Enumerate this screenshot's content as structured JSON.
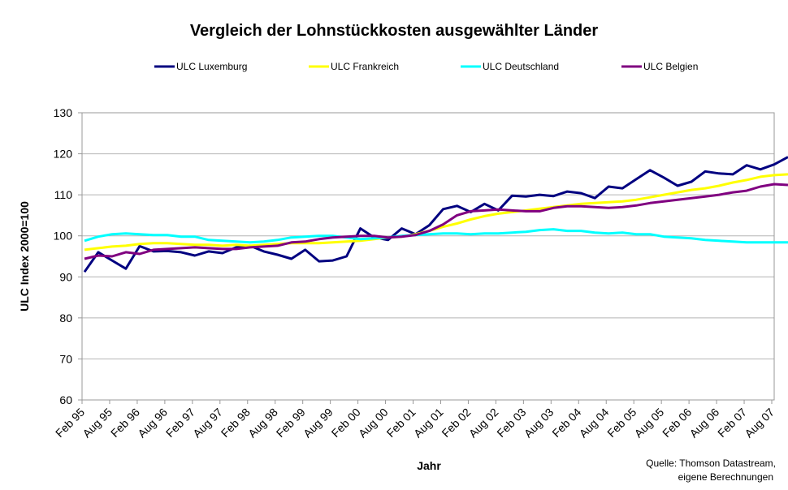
{
  "chart_data": {
    "type": "line",
    "title": "Vergleich der Lohnstückkosten ausgewählter Länder",
    "xlabel": "Jahr",
    "ylabel": "ULC Index 2000=100",
    "ylim": [
      60,
      130
    ],
    "yticks": [
      60,
      70,
      80,
      90,
      100,
      110,
      120,
      130
    ],
    "grid": true,
    "legend": "top",
    "x_tick_labels": [
      "Feb 95",
      "Aug 95",
      "Feb 96",
      "Aug 96",
      "Feb 97",
      "Aug 97",
      "Feb 98",
      "Aug 98",
      "Feb 99",
      "Aug 99",
      "Feb 00",
      "Aug 00",
      "Feb 01",
      "Aug 01",
      "Feb 02",
      "Aug 02",
      "Feb 03",
      "Aug 03",
      "Feb 04",
      "Aug 04",
      "Feb 05",
      "Aug 05",
      "Feb 06",
      "Aug 06",
      "Feb 07",
      "Aug 07"
    ],
    "points_per_tick": 2,
    "series": [
      {
        "name": "ULC Luxemburg",
        "color": "#000080",
        "values": [
          91.2,
          96.0,
          94.0,
          92.0,
          97.5,
          96.2,
          96.3,
          96.0,
          95.2,
          96.2,
          95.8,
          97.2,
          97.6,
          96.2,
          95.4,
          94.4,
          96.6,
          93.8,
          94.0,
          95.0,
          101.8,
          99.6,
          99.0,
          101.8,
          100.4,
          102.6,
          106.5,
          107.3,
          105.8,
          107.8,
          106.2,
          109.8,
          109.6,
          110.0,
          109.7,
          110.8,
          110.4,
          109.2,
          112.0,
          111.6,
          113.8,
          116.0,
          114.2,
          112.2,
          113.2,
          115.7,
          115.2,
          115.0,
          117.2,
          116.2,
          117.4,
          119.2
        ]
      },
      {
        "name": "ULC Frankreich",
        "color": "#FFFF00",
        "values": [
          96.6,
          97.0,
          97.4,
          97.6,
          98.0,
          98.2,
          98.2,
          98.0,
          97.8,
          97.8,
          97.6,
          97.8,
          97.6,
          97.8,
          98.0,
          98.2,
          98.2,
          98.2,
          98.4,
          98.6,
          98.8,
          99.2,
          99.6,
          99.8,
          100.4,
          101.2,
          102.2,
          103.0,
          104.0,
          104.8,
          105.4,
          105.8,
          106.2,
          106.6,
          107.0,
          107.4,
          107.8,
          108.0,
          108.2,
          108.4,
          108.8,
          109.4,
          110.0,
          110.6,
          111.2,
          111.6,
          112.2,
          113.0,
          113.6,
          114.4,
          114.8,
          115.0
        ]
      },
      {
        "name": "ULC Deutschland",
        "color": "#00FFFF",
        "values": [
          98.8,
          99.8,
          100.4,
          100.6,
          100.4,
          100.2,
          100.2,
          99.8,
          99.8,
          99.0,
          98.8,
          98.6,
          98.4,
          98.6,
          99.0,
          99.6,
          99.8,
          100.0,
          100.0,
          99.6,
          99.2,
          99.4,
          99.6,
          100.0,
          100.2,
          100.4,
          100.6,
          100.6,
          100.4,
          100.6,
          100.6,
          100.8,
          101.0,
          101.4,
          101.6,
          101.2,
          101.2,
          100.8,
          100.6,
          100.8,
          100.4,
          100.4,
          99.8,
          99.6,
          99.4,
          99.0,
          98.8,
          98.6,
          98.4,
          98.4,
          98.4,
          98.4
        ]
      },
      {
        "name": "ULC Belgien",
        "color": "#800080",
        "values": [
          94.4,
          95.2,
          95.0,
          96.0,
          95.6,
          96.6,
          96.8,
          97.0,
          97.2,
          97.0,
          96.8,
          96.8,
          97.2,
          97.4,
          97.6,
          98.4,
          98.6,
          99.2,
          99.6,
          99.8,
          100.0,
          100.0,
          99.6,
          99.8,
          100.2,
          101.2,
          102.8,
          105.0,
          106.0,
          106.2,
          106.4,
          106.2,
          106.0,
          106.0,
          106.8,
          107.2,
          107.2,
          107.0,
          106.8,
          107.0,
          107.4,
          108.0,
          108.4,
          108.8,
          109.2,
          109.6,
          110.0,
          110.6,
          111.0,
          112.0,
          112.6,
          112.4
        ]
      }
    ]
  },
  "source": {
    "line1": "Quelle: Thomson Datastream,",
    "line2": "eigene Berechnungen"
  }
}
